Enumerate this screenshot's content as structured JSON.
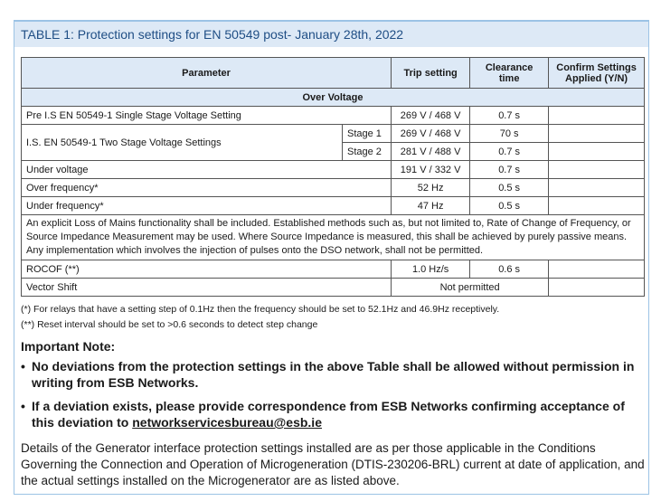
{
  "header": {
    "title": "TABLE 1: Protection settings for EN 50549 post- January 28th, 2022"
  },
  "table": {
    "columns": [
      "Parameter",
      "Trip setting",
      "Clearance time",
      "Confirm Settings Applied (Y/N)"
    ],
    "section": "Over Voltage",
    "rows": [
      [
        "Pre I.S EN 50549-1 Single Stage Voltage Setting",
        "269 V / 468 V",
        "0.7 s"
      ],
      [
        "I.S. EN 50549-1 Two Stage Voltage Settings",
        "Stage 1",
        "269 V / 468 V",
        "70 s"
      ],
      [
        "Stage 2",
        "281 V / 488 V",
        "0.7 s"
      ],
      [
        "Under voltage",
        "191 V / 332 V",
        "0.7 s"
      ],
      [
        "Over frequency*",
        "52 Hz",
        "0.5 s"
      ],
      [
        "Under frequency*",
        "47 Hz",
        "0.5 s"
      ],
      [
        "An explicit Loss of Mains functionality shall be included. Established methods such as, but not limited to, Rate of Change of Frequency, or Source Impedance Measurement may be used. Where Source Impedance is measured, this shall be achieved by purely passive means. Any implementation which involves the injection of pulses onto the DSO network, shall not be permitted."
      ],
      [
        "ROCOF (**)",
        "1.0 Hz/s",
        "0.6 s"
      ],
      [
        "Vector Shift",
        "Not permitted"
      ]
    ]
  },
  "footnotes": [
    "(*)  For relays that have a setting step of 0.1Hz then the frequency should be set to 52.1Hz and 46.9Hz receptively.",
    "(**) Reset interval should be set to >0.6 seconds to detect step change"
  ],
  "note": {
    "heading": "Important Note:",
    "bullets": [
      "No deviations from the protection settings in the above Table shall be allowed without permission in writing from ESB Networks.",
      "If a deviation exists, please provide correspondence from ESB Networks confirming acceptance of this deviation to "
    ],
    "email": "networkservicesbureau@esb.ie"
  },
  "paragraph": "Details of the Generator interface protection settings installed are as per those applicable in the Conditions Governing the Connection and Operation of Microgeneration (DTIS-230206-BRL) current at date of application, and the actual settings installed on the Microgenerator are as listed above."
}
